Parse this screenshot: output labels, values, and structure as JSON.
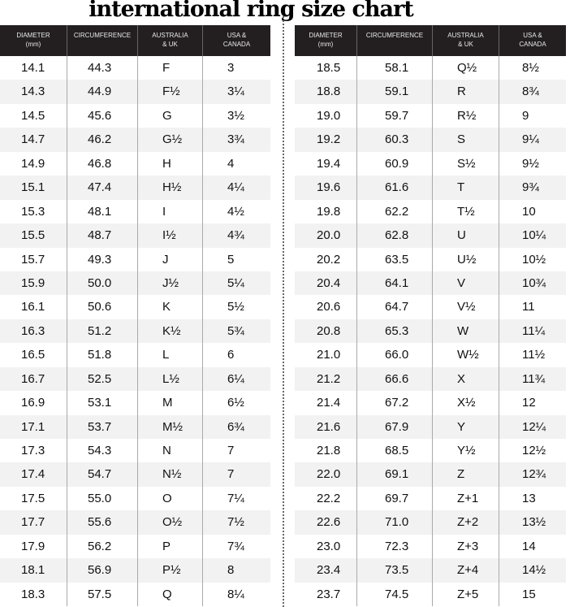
{
  "title": "international ring size chart",
  "headers": [
    "DIAMETER\n(mm)",
    "CIRCUMFERENCE",
    "AUSTRALIA\n& UK",
    "USA &\nCANADA"
  ],
  "left_rows": [
    [
      "14.1",
      "44.3",
      "F",
      "3"
    ],
    [
      "14.3",
      "44.9",
      "F½",
      "3¼"
    ],
    [
      "14.5",
      "45.6",
      "G",
      "3½"
    ],
    [
      "14.7",
      "46.2",
      "G½",
      "3¾"
    ],
    [
      "14.9",
      "46.8",
      "H",
      "4"
    ],
    [
      "15.1",
      "47.4",
      "H½",
      "4¼"
    ],
    [
      "15.3",
      "48.1",
      "I",
      "4½"
    ],
    [
      "15.5",
      "48.7",
      "I½",
      "4¾"
    ],
    [
      "15.7",
      "49.3",
      "J",
      "5"
    ],
    [
      "15.9",
      "50.0",
      "J½",
      "5¼"
    ],
    [
      "16.1",
      "50.6",
      "K",
      "5½"
    ],
    [
      "16.3",
      "51.2",
      "K½",
      "5¾"
    ],
    [
      "16.5",
      "51.8",
      "L",
      "6"
    ],
    [
      "16.7",
      "52.5",
      "L½",
      "6¼"
    ],
    [
      "16.9",
      "53.1",
      "M",
      "6½"
    ],
    [
      "17.1",
      "53.7",
      "M½",
      "6¾"
    ],
    [
      "17.3",
      "54.3",
      "N",
      "7"
    ],
    [
      "17.4",
      "54.7",
      "N½",
      "7"
    ],
    [
      "17.5",
      "55.0",
      "O",
      "7¼"
    ],
    [
      "17.7",
      "55.6",
      "O½",
      "7½"
    ],
    [
      "17.9",
      "56.2",
      "P",
      "7¾"
    ],
    [
      "18.1",
      "56.9",
      "P½",
      "8"
    ],
    [
      "18.3",
      "57.5",
      "Q",
      "8¼"
    ]
  ],
  "right_rows": [
    [
      "18.5",
      "58.1",
      "Q½",
      "8½"
    ],
    [
      "18.8",
      "59.1",
      "R",
      "8¾"
    ],
    [
      "19.0",
      "59.7",
      "R½",
      "9"
    ],
    [
      "19.2",
      "60.3",
      "S",
      "9¼"
    ],
    [
      "19.4",
      "60.9",
      "S½",
      "9½"
    ],
    [
      "19.6",
      "61.6",
      "T",
      "9¾"
    ],
    [
      "19.8",
      "62.2",
      "T½",
      "10"
    ],
    [
      "20.0",
      "62.8",
      "U",
      "10¼"
    ],
    [
      "20.2",
      "63.5",
      "U½",
      "10½"
    ],
    [
      "20.4",
      "64.1",
      "V",
      "10¾"
    ],
    [
      "20.6",
      "64.7",
      "V½",
      "11"
    ],
    [
      "20.8",
      "65.3",
      "W",
      "11¼"
    ],
    [
      "21.0",
      "66.0",
      "W½",
      "11½"
    ],
    [
      "21.2",
      "66.6",
      "X",
      "11¾"
    ],
    [
      "21.4",
      "67.2",
      "X½",
      "12"
    ],
    [
      "21.6",
      "67.9",
      "Y",
      "12¼"
    ],
    [
      "21.8",
      "68.5",
      "Y½",
      "12½"
    ],
    [
      "22.0",
      "69.1",
      "Z",
      "12¾"
    ],
    [
      "22.2",
      "69.7",
      "Z+1",
      "13"
    ],
    [
      "22.6",
      "71.0",
      "Z+2",
      "13½"
    ],
    [
      "23.0",
      "72.3",
      "Z+3",
      "14"
    ],
    [
      "23.4",
      "73.5",
      "Z+4",
      "14½"
    ],
    [
      "23.7",
      "74.5",
      "Z+5",
      "15"
    ]
  ],
  "colors": {
    "header_bg": "#231f20",
    "alt_row": "#f2f2f2"
  }
}
